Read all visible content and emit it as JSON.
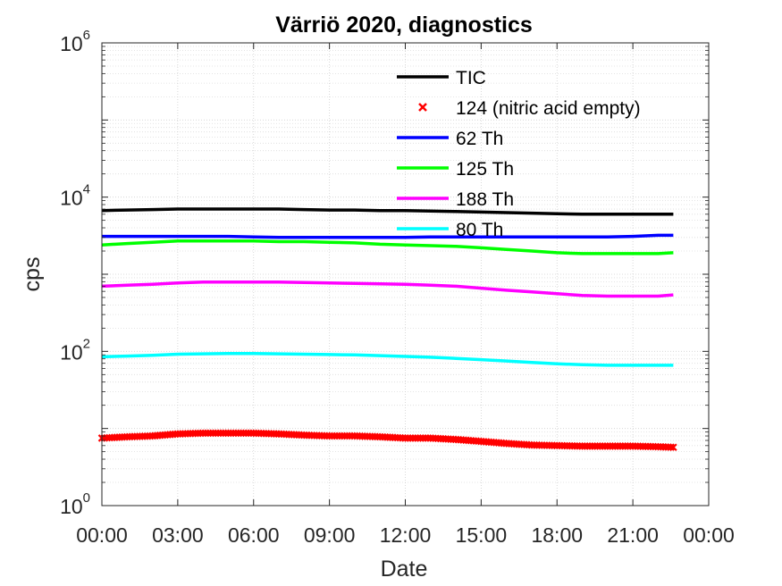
{
  "chart_data": {
    "type": "line",
    "title": "Värriö 2020, diagnostics",
    "xlabel": "Date",
    "ylabel": "cps",
    "yscale": "log",
    "ylim": [
      1,
      1000000
    ],
    "y_ticks": [
      {
        "base": "10",
        "exp": "0"
      },
      {
        "base": "10",
        "exp": "2"
      },
      {
        "base": "10",
        "exp": "4"
      },
      {
        "base": "10",
        "exp": "6"
      }
    ],
    "xlim_hours": [
      0,
      24
    ],
    "x_tick_labels": [
      "00:00",
      "03:00",
      "06:00",
      "09:00",
      "12:00",
      "15:00",
      "18:00",
      "21:00",
      "00:00"
    ],
    "grid": true,
    "legend_position": "top-right (inside)",
    "x_hours": [
      0,
      1,
      2,
      3,
      4,
      5,
      6,
      7,
      8,
      9,
      10,
      11,
      12,
      13,
      14,
      15,
      16,
      17,
      18,
      19,
      20,
      21,
      22,
      22.6
    ],
    "series": [
      {
        "name": "TIC",
        "color": "#000000",
        "style": "line",
        "values": [
          6700,
          6800,
          6900,
          7000,
          7000,
          7000,
          7000,
          7000,
          6900,
          6800,
          6800,
          6700,
          6700,
          6600,
          6500,
          6400,
          6300,
          6200,
          6100,
          6000,
          6000,
          6000,
          6000,
          6000
        ]
      },
      {
        "name": "124 (nitric acid empty)",
        "color": "#ff0000",
        "style": "marker-x",
        "values": [
          7.5,
          7.8,
          8.0,
          8.5,
          8.7,
          8.7,
          8.7,
          8.5,
          8.2,
          8.0,
          8.0,
          7.8,
          7.5,
          7.5,
          7.2,
          6.8,
          6.4,
          6.1,
          6.0,
          5.9,
          5.9,
          5.9,
          5.8,
          5.7
        ]
      },
      {
        "name": "62 Th",
        "color": "#0000ff",
        "style": "line",
        "values": [
          3100,
          3100,
          3100,
          3100,
          3100,
          3100,
          3050,
          3000,
          3000,
          3000,
          3000,
          3000,
          3000,
          3050,
          3050,
          3050,
          3050,
          3050,
          3050,
          3050,
          3050,
          3100,
          3200,
          3200
        ]
      },
      {
        "name": "125 Th",
        "color": "#00ff00",
        "style": "line",
        "values": [
          2400,
          2500,
          2600,
          2700,
          2700,
          2700,
          2700,
          2650,
          2650,
          2600,
          2550,
          2450,
          2400,
          2350,
          2300,
          2200,
          2100,
          2000,
          1900,
          1850,
          1850,
          1850,
          1850,
          1900
        ]
      },
      {
        "name": "188 Th",
        "color": "#ff00ff",
        "style": "line",
        "values": [
          700,
          720,
          740,
          770,
          790,
          790,
          790,
          790,
          780,
          770,
          760,
          750,
          740,
          720,
          700,
          660,
          620,
          590,
          560,
          530,
          520,
          520,
          520,
          540
        ]
      },
      {
        "name": "80 Th",
        "color": "#00ffff",
        "style": "line",
        "values": [
          85,
          87,
          89,
          92,
          93,
          94,
          94,
          93,
          92,
          91,
          90,
          88,
          86,
          84,
          81,
          78,
          75,
          72,
          69,
          67,
          66,
          66,
          66,
          66
        ]
      }
    ]
  }
}
